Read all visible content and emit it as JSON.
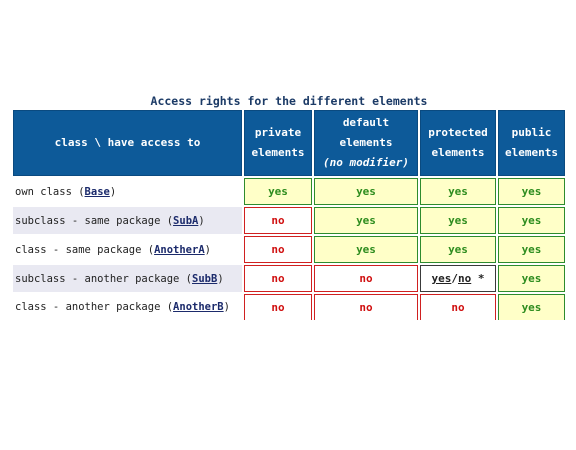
{
  "caption": "Access rights for the different elements",
  "header": {
    "row_label": "class \\ have access to",
    "private": [
      "private",
      "elements"
    ],
    "default": [
      "default",
      "elements",
      "(no modifier)"
    ],
    "protected": [
      "protected",
      "elements"
    ],
    "public": [
      "public",
      "elements"
    ]
  },
  "rows": [
    {
      "prefix": "own class (",
      "cls": "Base",
      "suffix": ")",
      "private": "yes",
      "default": "yes",
      "protected": "yes",
      "public": "yes"
    },
    {
      "prefix": "subclass - same package (",
      "cls": "SubA",
      "suffix": ")",
      "private": "no",
      "default": "yes",
      "protected": "yes",
      "public": "yes"
    },
    {
      "prefix": "class - same package (",
      "cls": "AnotherA",
      "suffix": ")",
      "private": "no",
      "default": "yes",
      "protected": "yes",
      "public": "yes"
    },
    {
      "prefix": "subclass - another package (",
      "cls": "SubB",
      "suffix": ")",
      "private": "no",
      "default": "no",
      "protected": "yes/no *",
      "protected_parts": {
        "yes": "yes",
        "slash": "/",
        "no": "no",
        "star": " *"
      },
      "public": "yes"
    },
    {
      "prefix": "class - another package (",
      "cls": "AnotherB",
      "suffix": ")",
      "private": "no",
      "default": "no",
      "protected": "no",
      "public": "yes"
    }
  ],
  "colors": {
    "header_bg": "#0d5a99",
    "yes_bg": "#ffffc8",
    "yes_border": "#2e8b2e",
    "yes_text": "#2d8c1e",
    "no_border": "#d02020",
    "no_text": "#d01010",
    "caption_text": "#1b3a66"
  }
}
